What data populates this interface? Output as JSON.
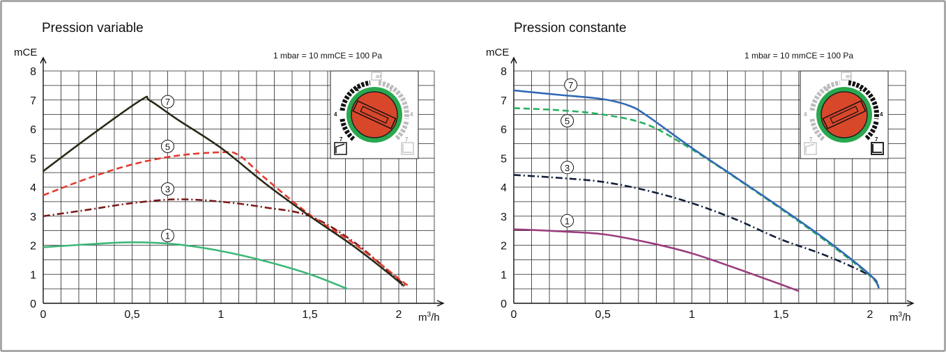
{
  "chart_data": [
    {
      "type": "line",
      "title": "Pression variable",
      "ylabel": "mCE",
      "xlabel": "m³/h",
      "note": "1 mbar = 10 mmCE = 100 Pa",
      "xlim": [
        0,
        2.2
      ],
      "ylim": [
        0,
        8
      ],
      "x_ticks": [
        "0",
        "0,5",
        "1",
        "1,5",
        "2"
      ],
      "y_ticks": [
        "0",
        "1",
        "2",
        "3",
        "4",
        "5",
        "6",
        "7",
        "8"
      ],
      "grid": true,
      "series": [
        {
          "name": "1",
          "color": "#3cb878",
          "dash": "solid",
          "x": [
            0,
            0.25,
            0.5,
            0.75,
            1.0,
            1.25,
            1.5,
            1.71
          ],
          "y": [
            1.93,
            2.03,
            2.1,
            2.03,
            1.8,
            1.45,
            1.0,
            0.5
          ]
        },
        {
          "name": "3",
          "color": "#7a1a1a",
          "dash": "dashdot",
          "x": [
            0,
            0.25,
            0.5,
            0.75,
            1.0,
            1.25,
            1.5,
            1.75,
            2.0,
            2.05
          ],
          "y": [
            3.0,
            3.22,
            3.45,
            3.58,
            3.5,
            3.3,
            3.0,
            2.1,
            0.8,
            0.6
          ]
        },
        {
          "name": "5",
          "color": "#e53a2e",
          "dash": "dashed",
          "x": [
            0,
            0.25,
            0.5,
            0.75,
            1.0,
            1.1,
            1.25,
            1.5,
            1.75,
            2.0,
            2.05
          ],
          "y": [
            3.72,
            4.3,
            4.78,
            5.08,
            5.2,
            5.1,
            4.3,
            3.05,
            2.05,
            0.85,
            0.62
          ]
        },
        {
          "name": "7",
          "color": "#2a2a1a",
          "dash": "solid",
          "x": [
            0,
            0.25,
            0.55,
            0.6,
            0.75,
            1.0,
            1.25,
            1.5,
            1.75,
            2.0,
            2.02
          ],
          "y": [
            4.55,
            5.7,
            7.0,
            6.98,
            6.35,
            5.35,
            4.12,
            3.0,
            1.95,
            0.75,
            0.6
          ]
        }
      ]
    },
    {
      "type": "line",
      "title": "Pression constante",
      "ylabel": "mCE",
      "xlabel": "m³/h",
      "note": "1 mbar = 10 mmCE = 100 Pa",
      "xlim": [
        0,
        2.2
      ],
      "ylim": [
        0,
        8
      ],
      "x_ticks": [
        "0",
        "0,5",
        "1",
        "1,5",
        "2"
      ],
      "y_ticks": [
        "0",
        "1",
        "2",
        "3",
        "4",
        "5",
        "6",
        "7",
        "8"
      ],
      "grid": true,
      "series": [
        {
          "name": "1",
          "color": "#9b3d7e",
          "dash": "solid",
          "x": [
            0,
            0.25,
            0.5,
            0.75,
            1.0,
            1.25,
            1.5,
            1.6
          ],
          "y": [
            2.55,
            2.48,
            2.38,
            2.1,
            1.72,
            1.2,
            0.65,
            0.42
          ]
        },
        {
          "name": "3",
          "color": "#12203a",
          "dash": "dashdot",
          "x": [
            0,
            0.25,
            0.5,
            0.75,
            1.0,
            1.25,
            1.5,
            1.75,
            2.0,
            2.05
          ],
          "y": [
            4.42,
            4.32,
            4.18,
            3.88,
            3.45,
            2.88,
            2.2,
            1.65,
            0.95,
            0.55
          ]
        },
        {
          "name": "5",
          "color": "#28b060",
          "dash": "dashed",
          "x": [
            0,
            0.25,
            0.5,
            0.75,
            1.0,
            1.25,
            1.5,
            1.75,
            2.0,
            2.05
          ],
          "y": [
            6.72,
            6.65,
            6.5,
            6.15,
            5.3,
            4.3,
            3.25,
            2.15,
            0.95,
            0.52
          ]
        },
        {
          "name": "7",
          "color": "#3268b4",
          "dash": "solid",
          "x": [
            0,
            0.25,
            0.5,
            0.65,
            0.75,
            1.0,
            1.25,
            1.5,
            1.75,
            2.0,
            2.05
          ],
          "y": [
            7.33,
            7.18,
            7.03,
            6.8,
            6.45,
            5.35,
            4.32,
            3.28,
            2.2,
            0.98,
            0.52
          ]
        }
      ]
    }
  ],
  "dials": [
    {
      "mode": "variable",
      "top_icon": "air-vent-icon",
      "scale": [
        "1",
        "4",
        "7"
      ],
      "active_side": "left",
      "button_color": "#d9472b",
      "ring_color": "#29a84f"
    },
    {
      "mode": "constant",
      "top_icon": "air-vent-icon",
      "scale": [
        "1",
        "4",
        "7"
      ],
      "active_side": "right",
      "button_color": "#d9472b",
      "ring_color": "#29a84f"
    }
  ],
  "dial_top_label": "air"
}
